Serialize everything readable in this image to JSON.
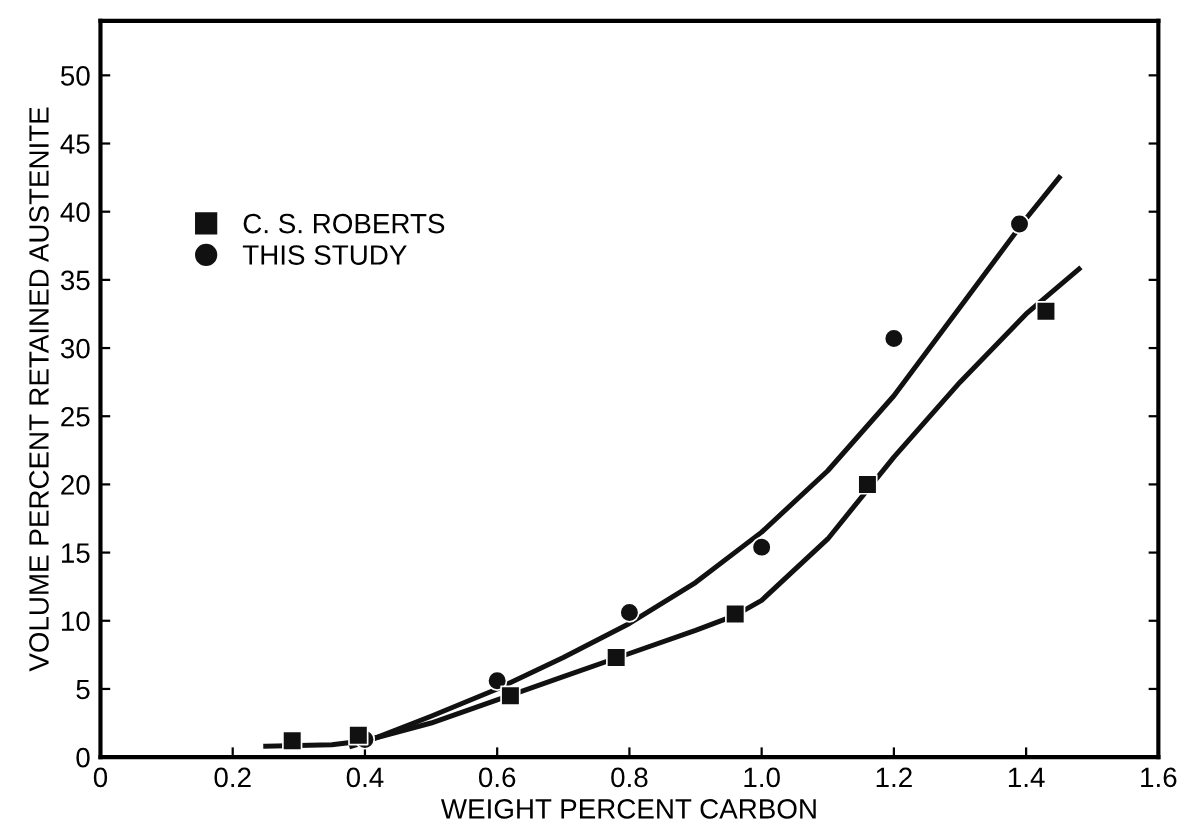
{
  "chart_data": {
    "type": "scatter",
    "xlabel": "WEIGHT PERCENT CARBON",
    "ylabel": "VOLUME PERCENT RETAINED AUSTENITE",
    "xlim": [
      0,
      1.6
    ],
    "xticks": [
      0,
      0.2,
      0.4,
      0.6,
      0.8,
      {
        "value": 1,
        "label": "1.0"
      },
      1.2,
      1.4,
      1.6
    ],
    "ylim": [
      0,
      54
    ],
    "yticks": [
      0,
      5,
      10,
      15,
      20,
      25,
      30,
      35,
      40,
      45,
      50
    ],
    "grid": false,
    "legend": "left",
    "series": [
      {
        "name": "C. S. ROBERTS",
        "color": "#111111",
        "marker": "square",
        "x": [
          0.29,
          0.39,
          0.62,
          0.78,
          0.96,
          1.16,
          1.43
        ],
        "values": [
          1.2,
          1.6,
          4.5,
          7.3,
          10.5,
          20,
          32.7
        ]
      },
      {
        "name": "THIS STUDY",
        "color": "#111111",
        "marker": "circle",
        "x": [
          0.4,
          0.6,
          0.8,
          1.0,
          1.2,
          1.39
        ],
        "values": [
          1.3,
          5.6,
          10.6,
          15.4,
          30.7,
          39.1
        ]
      },
      {
        "type": "line",
        "color": "#111111",
        "x": [
          0.25,
          0.35,
          0.4,
          0.5,
          0.6,
          0.7,
          0.8,
          0.9,
          0.96,
          1.0,
          1.1,
          1.2,
          1.3,
          1.4,
          1.48
        ],
        "values": [
          0.8,
          0.9,
          1.2,
          2.5,
          4.2,
          5.9,
          7.6,
          9.3,
          10.4,
          11.5,
          16,
          22,
          27.5,
          32.5,
          35.8
        ]
      },
      {
        "type": "line",
        "color": "#111111",
        "x": [
          0.38,
          0.4,
          0.5,
          0.6,
          0.7,
          0.8,
          0.9,
          1.0,
          1.1,
          1.2,
          1.3,
          1.4,
          1.45
        ],
        "values": [
          0.8,
          1.1,
          3,
          5,
          7.3,
          9.8,
          12.8,
          16.5,
          21,
          26.5,
          33,
          39.5,
          42.5
        ]
      }
    ]
  }
}
